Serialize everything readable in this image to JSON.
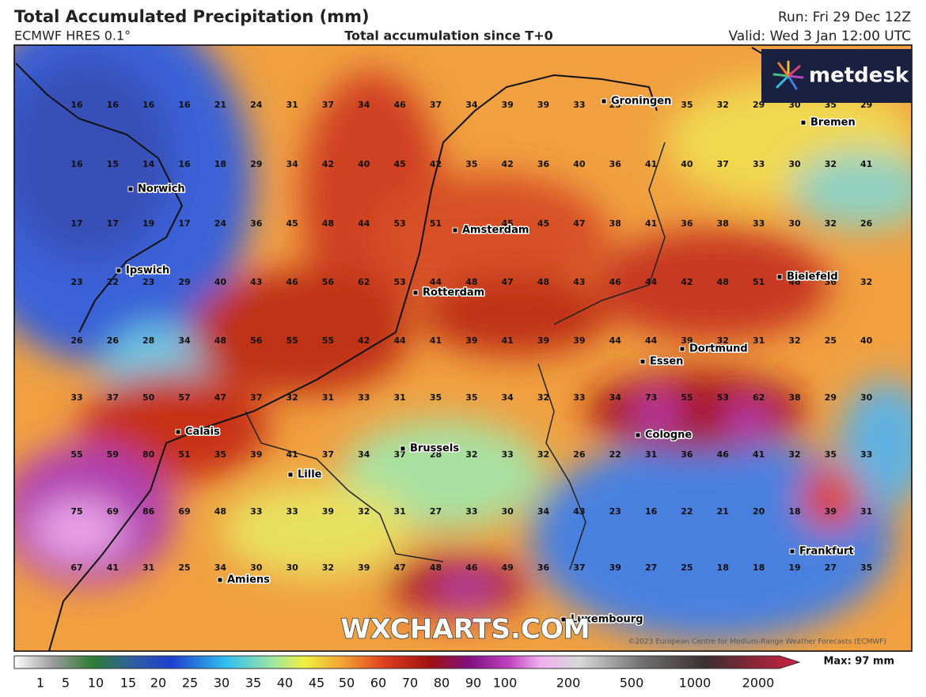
{
  "header": {
    "title": "Total Accumulated Precipitation (mm)",
    "model": "ECMWF HRES 0.1°",
    "subtitle": "Total accumulation since T+0",
    "run": "Run: Fri 29 Dec 12Z",
    "valid": "Valid: Wed 3 Jan 12:00 UTC"
  },
  "logo": "metdesk",
  "watermark": "WXCHARTS.COM",
  "copyright": "©2023 European Centre for Medium-Range Weather Forecasts (ECMWF)",
  "grid": {
    "rows": [
      [
        16,
        16,
        16,
        16,
        21,
        24,
        31,
        37,
        34,
        46,
        37,
        34,
        39,
        39,
        33,
        25,
        null,
        35,
        32,
        29,
        30,
        35,
        29
      ],
      [
        16,
        15,
        14,
        16,
        18,
        29,
        34,
        42,
        40,
        45,
        42,
        35,
        42,
        36,
        40,
        36,
        41,
        40,
        37,
        33,
        30,
        32,
        41
      ],
      [
        17,
        17,
        19,
        17,
        24,
        36,
        45,
        48,
        44,
        53,
        51,
        null,
        45,
        45,
        47,
        38,
        41,
        36,
        38,
        33,
        30,
        32,
        26
      ],
      [
        23,
        22,
        23,
        29,
        40,
        43,
        46,
        56,
        62,
        53,
        44,
        48,
        47,
        48,
        43,
        46,
        44,
        42,
        48,
        51,
        46,
        36,
        32
      ],
      [
        26,
        26,
        28,
        34,
        48,
        56,
        55,
        55,
        42,
        44,
        41,
        39,
        41,
        39,
        39,
        44,
        44,
        39,
        32,
        31,
        32,
        25,
        40
      ],
      [
        33,
        37,
        50,
        57,
        47,
        37,
        32,
        31,
        33,
        31,
        35,
        35,
        34,
        32,
        33,
        34,
        73,
        55,
        53,
        62,
        38,
        29,
        30
      ],
      [
        55,
        59,
        80,
        51,
        35,
        39,
        41,
        37,
        34,
        37,
        28,
        32,
        33,
        32,
        26,
        22,
        31,
        36,
        46,
        41,
        32,
        35,
        33
      ],
      [
        75,
        69,
        86,
        69,
        48,
        33,
        33,
        39,
        32,
        31,
        27,
        33,
        30,
        34,
        43,
        23,
        16,
        22,
        21,
        20,
        18,
        39,
        31
      ],
      [
        67,
        41,
        31,
        25,
        34,
        30,
        30,
        32,
        39,
        47,
        48,
        46,
        49,
        36,
        37,
        39,
        27,
        25,
        18,
        18,
        19,
        27,
        35
      ]
    ]
  },
  "cities": [
    "Groningen",
    "Bremen",
    "Norwich",
    "Amsterdam",
    "Ipswich",
    "Rotterdam",
    "Bielefeld",
    "Dortmund",
    "Essen",
    "Calais",
    "Cologne",
    "Brussels",
    "Lille",
    "Frankfurt",
    "Amiens",
    "Luxembourg"
  ],
  "colorbar": {
    "labels": [
      1,
      5,
      10,
      15,
      20,
      25,
      30,
      35,
      40,
      45,
      50,
      60,
      70,
      80,
      90,
      100,
      200,
      500,
      1000,
      2000
    ],
    "max_label": "Max: 97 mm"
  }
}
